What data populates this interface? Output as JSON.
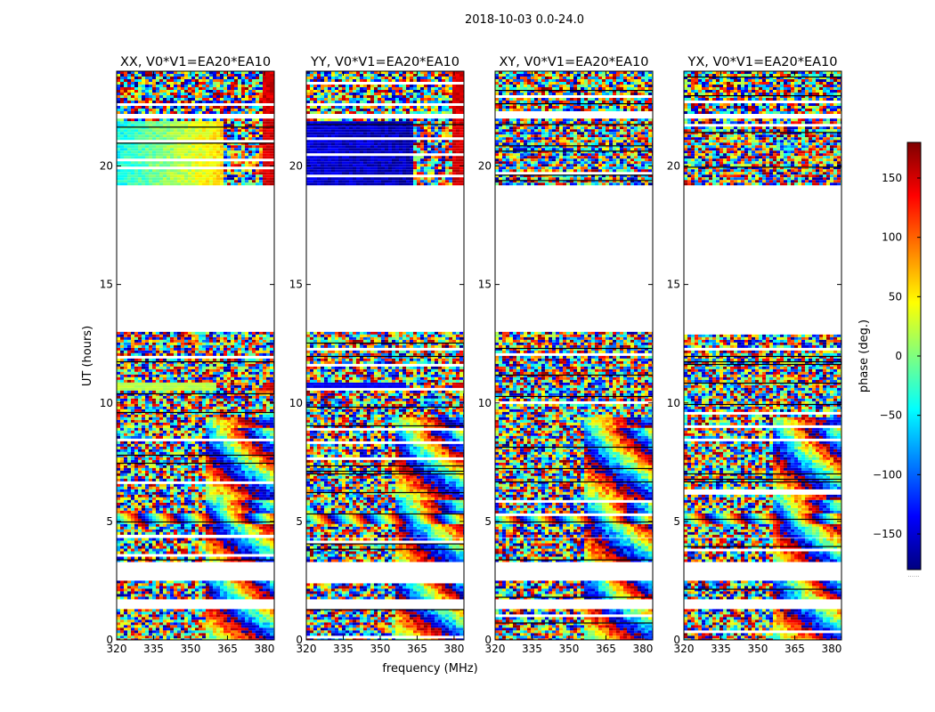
{
  "chart_data": {
    "type": "heatmap",
    "suptitle": "2018-10-03 0.0-24.0",
    "xlabel": "frequency (MHz)",
    "ylabel": "UT (hours)",
    "xlim": [
      320,
      384
    ],
    "ylim": [
      0,
      24
    ],
    "xticks": [
      320,
      335,
      350,
      365,
      380
    ],
    "yticks": [
      0,
      5,
      10,
      15,
      20
    ],
    "colorbar": {
      "label": "phase (deg.)",
      "range": [
        -180,
        180
      ],
      "ticks": [
        -150,
        -100,
        -50,
        0,
        50,
        100,
        150
      ],
      "tick_labels": [
        "−150",
        "−100",
        "−50",
        "0",
        "50",
        "100",
        "150"
      ],
      "colormap": [
        "#00007f",
        "#0000ff",
        "#007fff",
        "#00ffff",
        "#7fff7f",
        "#ffff00",
        "#ff7f00",
        "#ff0000",
        "#7f0000"
      ],
      "footer": "......"
    },
    "data_blocks_ut": [
      [
        0.0,
        1.3
      ],
      [
        1.8,
        2.5
      ],
      [
        3.3,
        4.3
      ],
      [
        4.4,
        13.0
      ],
      [
        19.2,
        22.0
      ],
      [
        22.2,
        24.0
      ]
    ],
    "panels": [
      {
        "title": "XX, V0*V1=EA20*EA10",
        "smooth_phase_deg": 20,
        "upper_gradient": [
          -40,
          60
        ],
        "edge_phase_deg": 150
      },
      {
        "title": "YY, V0*V1=EA20*EA10",
        "smooth_phase_deg": -140,
        "upper_gradient": [
          -150,
          -160
        ],
        "edge_phase_deg": 150
      },
      {
        "title": "XY, V0*V1=EA20*EA10",
        "smooth_phase_deg": null,
        "upper_gradient": null,
        "edge_phase_deg": null
      },
      {
        "title": "YX, V0*V1=EA20*EA10",
        "smooth_phase_deg": null,
        "upper_gradient": null,
        "edge_phase_deg": null
      }
    ]
  }
}
